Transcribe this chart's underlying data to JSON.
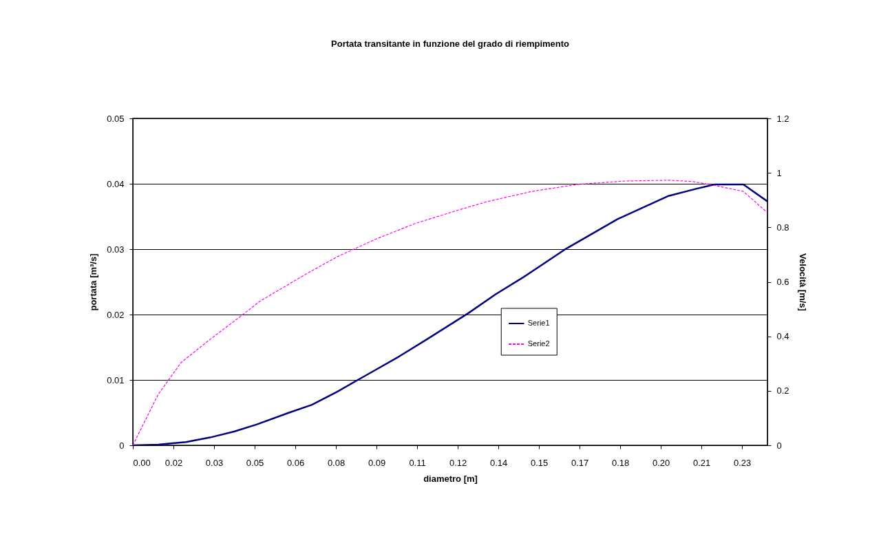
{
  "chart_data": {
    "type": "line",
    "title": "Portata transitante  in funzione del grado di riempimento",
    "xlabel": "diametro [m]",
    "ylabel": "portata [m³/s]",
    "y2label": "Velocità [m/s]",
    "xlim": [
      0,
      0.2375
    ],
    "xticks": [
      {
        "value": 0,
        "label": "0.00"
      },
      {
        "value": 0.0152,
        "label": "0.02"
      },
      {
        "value": 0.0304,
        "label": "0.03"
      },
      {
        "value": 0.0456,
        "label": "0.05"
      },
      {
        "value": 0.0608,
        "label": "0.06"
      },
      {
        "value": 0.076,
        "label": "0.08"
      },
      {
        "value": 0.0912,
        "label": "0.09"
      },
      {
        "value": 0.1064,
        "label": "0.11"
      },
      {
        "value": 0.1216,
        "label": "0.12"
      },
      {
        "value": 0.1368,
        "label": "0.14"
      },
      {
        "value": 0.152,
        "label": "0.15"
      },
      {
        "value": 0.1672,
        "label": "0.17"
      },
      {
        "value": 0.1824,
        "label": "0.18"
      },
      {
        "value": 0.1976,
        "label": "0.20"
      },
      {
        "value": 0.2128,
        "label": "0.21"
      },
      {
        "value": 0.228,
        "label": "0.23"
      }
    ],
    "ylim": [
      0,
      0.05
    ],
    "yticks": [
      0,
      0.01,
      0.02,
      0.03,
      0.04,
      0.05
    ],
    "y2lim": [
      0,
      1.2
    ],
    "y2ticks": [
      0,
      0.2,
      0.4,
      0.6,
      0.8,
      1,
      1.2
    ],
    "grid": "y",
    "legend": "center",
    "series": [
      {
        "name": "Serie1",
        "color": "#000080",
        "line_style": "solid",
        "x": [
          0,
          0.0095,
          0.0199,
          0.0289,
          0.0379,
          0.0464,
          0.0585,
          0.067,
          0.0765,
          0.0842,
          0.0907,
          0.0997,
          0.11,
          0.1255,
          0.1358,
          0.1461,
          0.1615,
          0.1814,
          0.2002,
          0.2105,
          0.2177,
          0.2285,
          0.2375
        ],
        "values": [
          0,
          0.0001,
          0.0005,
          0.0012,
          0.0021,
          0.0032,
          0.005,
          0.0062,
          0.0082,
          0.01,
          0.0115,
          0.0136,
          0.0162,
          0.0202,
          0.0231,
          0.0257,
          0.0299,
          0.0346,
          0.0381,
          0.0392,
          0.0399,
          0.0399,
          0.0373
        ]
      },
      {
        "name": "Serie2",
        "color": "#ff00ff",
        "line_style": "dashed",
        "axis": "y2",
        "x": [
          0,
          0.0095,
          0.018,
          0.0276,
          0.0412,
          0.0474,
          0.0654,
          0.0765,
          0.0912,
          0.1056,
          0.1203,
          0.1324,
          0.1494,
          0.1667,
          0.1839,
          0.201,
          0.2097,
          0.2182,
          0.2285,
          0.2375
        ],
        "values": [
          0,
          0.187,
          0.303,
          0.379,
          0.48,
          0.528,
          0.632,
          0.692,
          0.758,
          0.814,
          0.859,
          0.894,
          0.932,
          0.958,
          0.97,
          0.973,
          0.968,
          0.953,
          0.932,
          0.854
        ]
      }
    ]
  }
}
